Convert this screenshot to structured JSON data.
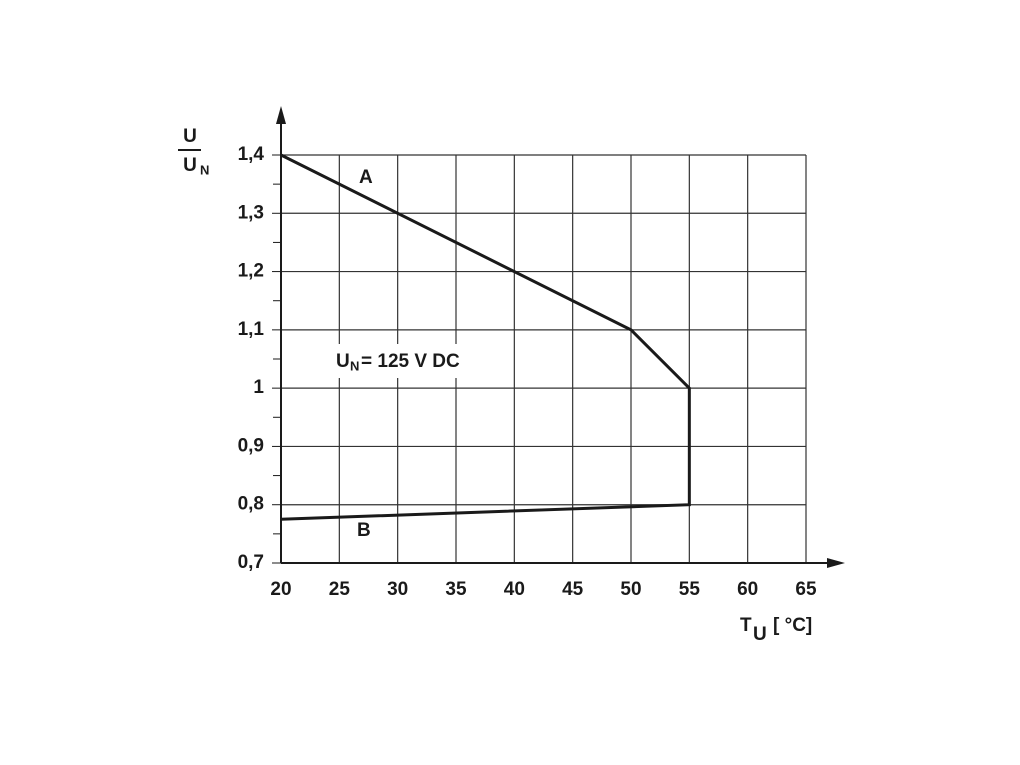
{
  "chart_data": {
    "type": "line",
    "x": [
      20,
      50,
      55,
      55,
      20
    ],
    "values": [
      1.4,
      1.1,
      1.0,
      0.8,
      0.775
    ],
    "color": "#1a1a1a",
    "xlim": [
      20,
      65
    ],
    "xticks": [
      20,
      25,
      30,
      35,
      40,
      45,
      50,
      55,
      60,
      65
    ],
    "ylim": [
      0.7,
      1.4
    ],
    "yticks": [
      {
        "value": 0.7,
        "label": "0,7"
      },
      {
        "value": 0.8,
        "label": "0,8"
      },
      {
        "value": 0.9,
        "label": "0,9"
      },
      1,
      {
        "value": 1.1,
        "label": "1,1"
      },
      {
        "value": 1.2,
        "label": "1,2"
      },
      {
        "value": 1.3,
        "label": "1,3"
      },
      {
        "value": 1.4,
        "label": "1,4"
      }
    ],
    "yminorticks": [
      0.75,
      0.85,
      0.95,
      1.05,
      1.15,
      1.25,
      1.35
    ],
    "grid": true,
    "y_label": {
      "numerator": "U",
      "denominator": "U",
      "denominator_sub": "N"
    },
    "x_label": {
      "symbol": "T",
      "sub": "U",
      "unit": "[ °C]"
    },
    "annotations": {
      "curve_a": "A",
      "curve_b": "B",
      "rating": {
        "symbol": "U",
        "sub": "N",
        "text": "= 125 V DC"
      }
    }
  }
}
